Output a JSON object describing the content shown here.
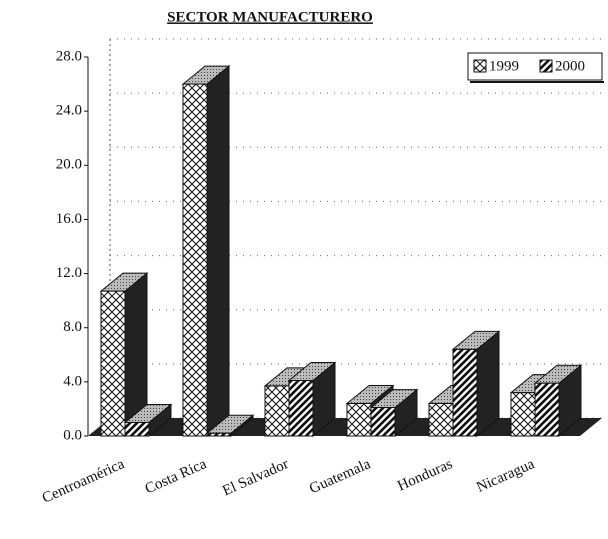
{
  "chart_data": {
    "type": "bar3d",
    "title": "SECTOR MANUFACTURERO",
    "categories": [
      "Centroamérica",
      "Costa Rica",
      "El Salvador",
      "Guatemala",
      "Honduras",
      "Nicaragua"
    ],
    "series": [
      {
        "name": "1999",
        "color": "#ffffff",
        "values": [
          10.7,
          26.0,
          3.7,
          2.4,
          2.4,
          3.2
        ]
      },
      {
        "name": "2000",
        "color": "#333333",
        "values": [
          1.0,
          0.2,
          4.1,
          2.1,
          6.4,
          3.9
        ]
      }
    ],
    "ylim": [
      0,
      28
    ],
    "yticks": [
      {
        "value": 0,
        "label": "0.0"
      },
      {
        "value": 4,
        "label": "4.0"
      },
      {
        "value": 8,
        "label": "8.0"
      },
      {
        "value": 12,
        "label": "12.0"
      },
      {
        "value": 16,
        "label": "16.0"
      },
      {
        "value": 20,
        "label": "20.0"
      },
      {
        "value": 24,
        "label": "24.0"
      },
      {
        "value": 28,
        "label": "28.0"
      }
    ],
    "legend": "top-right",
    "grid": true
  }
}
